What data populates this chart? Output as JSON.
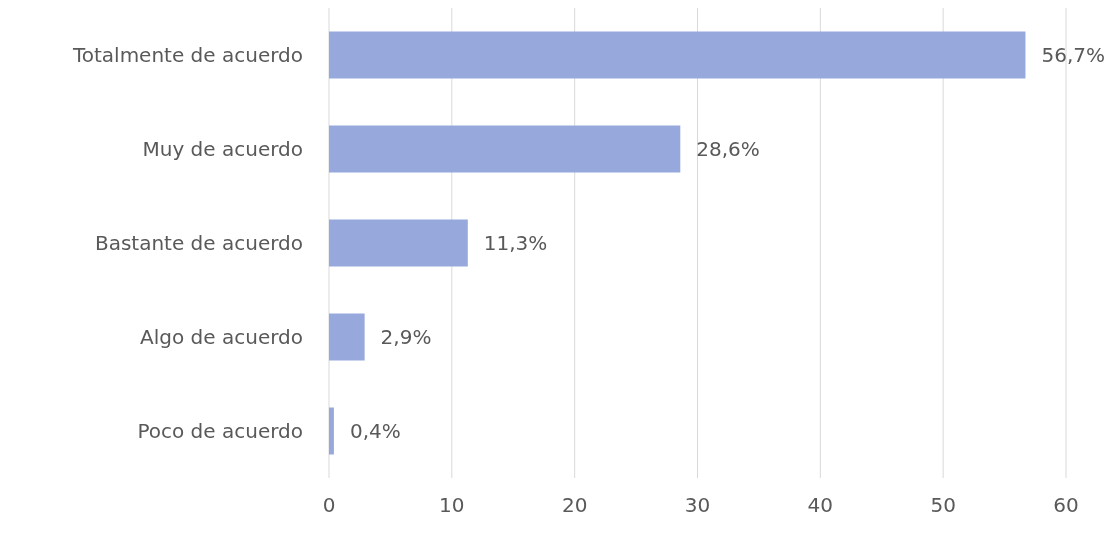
{
  "chart_data": {
    "type": "bar",
    "orientation": "horizontal",
    "categories": [
      "Totalmente de acuerdo",
      "Muy de acuerdo",
      "Bastante de acuerdo",
      "Algo de acuerdo",
      "Poco de acuerdo"
    ],
    "values": [
      56.7,
      28.6,
      11.3,
      2.9,
      0.4
    ],
    "value_labels": [
      "56,7%",
      "28,6%",
      "11,3%",
      "2,9%",
      "0,4%"
    ],
    "color": "#97a9dc",
    "xlim": [
      0,
      60
    ],
    "xticks": [
      0,
      10,
      20,
      30,
      40,
      50,
      60
    ],
    "grid": "x"
  }
}
